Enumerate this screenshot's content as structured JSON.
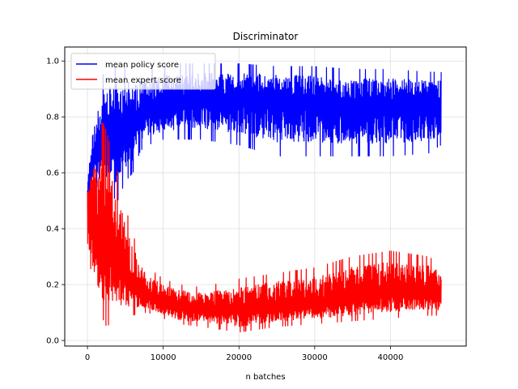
{
  "chart_data": {
    "type": "line",
    "title": "Discriminator",
    "xlabel": "n batches",
    "ylabel": "",
    "xlim": [
      -3000,
      50000
    ],
    "ylim": [
      -0.02,
      1.05
    ],
    "x_ticks": [
      0,
      10000,
      20000,
      30000,
      40000
    ],
    "y_ticks": [
      0.0,
      0.2,
      0.4,
      0.6,
      0.8,
      1.0
    ],
    "x_tick_labels": [
      "0",
      "10000",
      "20000",
      "30000",
      "40000"
    ],
    "y_tick_labels": [
      "0.0",
      "0.2",
      "0.4",
      "0.6",
      "0.8",
      "1.0"
    ],
    "grid": true,
    "legend": {
      "placement": "top-left"
    },
    "series": [
      {
        "name": "mean policy score",
        "color": "#0000ff",
        "x": [
          0,
          500,
          1000,
          1500,
          2000,
          3000,
          4000,
          5000,
          6000,
          7000,
          8000,
          10000,
          12000,
          15000,
          20000,
          25000,
          30000,
          35000,
          40000,
          45000,
          46700
        ],
        "mean": [
          0.52,
          0.6,
          0.65,
          0.68,
          0.7,
          0.72,
          0.74,
          0.76,
          0.78,
          0.8,
          0.82,
          0.84,
          0.85,
          0.86,
          0.86,
          0.86,
          0.85,
          0.84,
          0.84,
          0.84,
          0.84
        ],
        "low": [
          0.45,
          0.5,
          0.55,
          0.55,
          0.52,
          0.52,
          0.5,
          0.57,
          0.6,
          0.68,
          0.7,
          0.72,
          0.72,
          0.72,
          0.7,
          0.66,
          0.66,
          0.66,
          0.66,
          0.67,
          0.7
        ],
        "high": [
          0.57,
          0.77,
          0.82,
          0.9,
          0.95,
          0.97,
          0.98,
          0.98,
          0.98,
          0.98,
          0.98,
          0.99,
          0.99,
          0.99,
          0.99,
          0.98,
          0.98,
          0.97,
          0.97,
          0.96,
          0.96
        ]
      },
      {
        "name": "mean expert score",
        "color": "#ff0000",
        "x": [
          0,
          500,
          1000,
          1500,
          2000,
          2500,
          3000,
          4000,
          5000,
          6000,
          7000,
          8000,
          10000,
          12000,
          15000,
          20000,
          25000,
          30000,
          35000,
          40000,
          45000,
          46700
        ],
        "mean": [
          0.48,
          0.42,
          0.38,
          0.36,
          0.35,
          0.34,
          0.32,
          0.28,
          0.24,
          0.2,
          0.18,
          0.16,
          0.14,
          0.12,
          0.11,
          0.11,
          0.12,
          0.13,
          0.15,
          0.17,
          0.17,
          0.16
        ],
        "low": [
          0.3,
          0.25,
          0.18,
          0.12,
          0.08,
          0.05,
          0.06,
          0.07,
          0.08,
          0.09,
          0.1,
          0.1,
          0.08,
          0.06,
          0.05,
          0.03,
          0.05,
          0.06,
          0.07,
          0.08,
          0.09,
          0.09
        ],
        "high": [
          0.55,
          0.65,
          0.72,
          0.76,
          0.78,
          0.75,
          0.7,
          0.6,
          0.48,
          0.38,
          0.3,
          0.26,
          0.22,
          0.2,
          0.19,
          0.22,
          0.24,
          0.26,
          0.3,
          0.32,
          0.3,
          0.27
        ]
      }
    ]
  }
}
